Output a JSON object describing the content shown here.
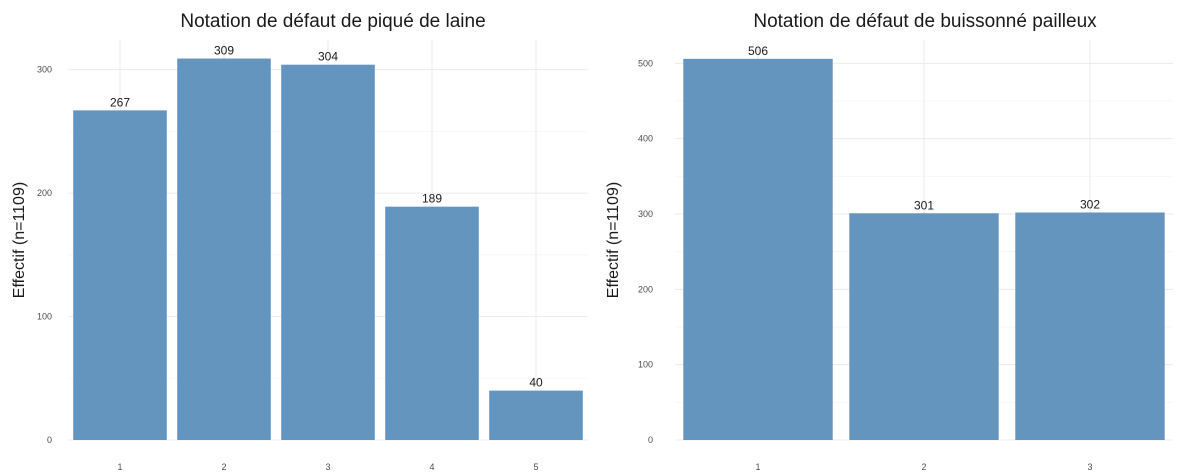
{
  "chart_data": [
    {
      "type": "bar",
      "title": "Notation de défaut de piqué de laine",
      "xlabel": "",
      "ylabel": "Effectif (n=1109)",
      "categories": [
        "1",
        "2",
        "3",
        "4",
        "5"
      ],
      "values": [
        267,
        309,
        304,
        189,
        40
      ],
      "data_labels": [
        "267",
        "309",
        "304",
        "189",
        "40"
      ],
      "yticks": [
        0,
        100,
        200,
        300
      ],
      "ylim": [
        0,
        324
      ],
      "grid": true,
      "bar_color": "#6495bf"
    },
    {
      "type": "bar",
      "title": "Notation de défaut de buissonné pailleux",
      "xlabel": "",
      "ylabel": "Effectif (n=1109)",
      "categories": [
        "1",
        "2",
        "3"
      ],
      "values": [
        506,
        301,
        302
      ],
      "data_labels": [
        "506",
        "301",
        "302"
      ],
      "yticks": [
        0,
        100,
        200,
        300,
        400,
        500
      ],
      "ylim": [
        0,
        531
      ],
      "grid": true,
      "bar_color": "#6495bf"
    }
  ]
}
